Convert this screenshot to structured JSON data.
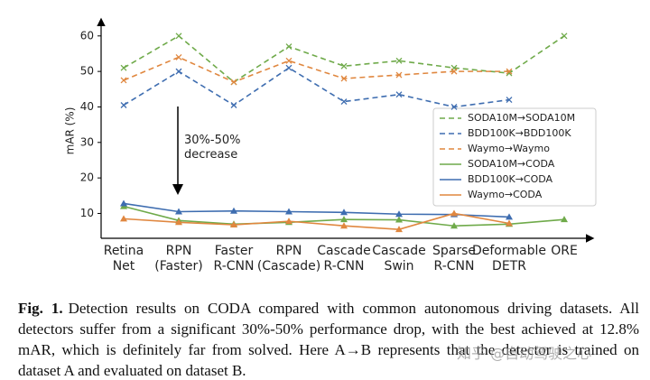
{
  "chart_data": {
    "type": "line",
    "ylabel": "mAR (%)",
    "categories": [
      "Retina\nNet",
      "RPN\n(Faster)",
      "Faster\nR-CNN",
      "RPN\n(Cascade)",
      "Cascade\nR-CNN",
      "Cascade\nSwin",
      "Sparse\nR-CNN",
      "Deformable\nDETR",
      "ORE"
    ],
    "ylim": [
      3,
      63
    ],
    "yticks": [
      10,
      20,
      30,
      40,
      50,
      60
    ],
    "annotation": "30%-50%\ndecrease",
    "legend_position": "right",
    "series": [
      {
        "name": "SODA10M→SODA10M",
        "color": "#6faa4a",
        "dashed": true,
        "marker": "x",
        "values": [
          51,
          60,
          47,
          57,
          51.5,
          53,
          51,
          49.5,
          60
        ]
      },
      {
        "name": "BDD100K→BDD100K",
        "color": "#3e6db0",
        "dashed": true,
        "marker": "x",
        "values": [
          40.5,
          50,
          40.5,
          51,
          41.5,
          43.5,
          40,
          42,
          null
        ]
      },
      {
        "name": "Waymo→Waymo",
        "color": "#e0873f",
        "dashed": true,
        "marker": "x",
        "values": [
          47.5,
          54,
          47,
          53,
          48,
          49,
          50,
          50,
          null
        ]
      },
      {
        "name": "SODA10M→CODA",
        "color": "#6faa4a",
        "dashed": false,
        "marker": "^",
        "values": [
          12,
          8,
          7,
          7.5,
          8.3,
          8.2,
          6.5,
          7,
          8.3
        ]
      },
      {
        "name": "BDD100K→CODA",
        "color": "#3e6db0",
        "dashed": false,
        "marker": "^",
        "values": [
          12.8,
          10.5,
          10.7,
          10.5,
          10.3,
          9.8,
          9.7,
          9,
          null
        ]
      },
      {
        "name": "Waymo→CODA",
        "color": "#e0873f",
        "dashed": false,
        "marker": "^",
        "values": [
          8.5,
          7.5,
          6.8,
          7.8,
          6.5,
          5.5,
          10,
          7.2,
          null
        ]
      }
    ]
  },
  "caption": {
    "label": "Fig. 1.",
    "text": "Detection results on CODA compared with common autonomous driving datasets. All detectors suffer from a significant 30%-50% performance drop, with the best achieved at 12.8% mAR, which is definitely far from solved. Here A→B represents that the detector is trained on dataset A and evaluated on dataset B."
  },
  "watermark": "知乎 @自动驾驶之心"
}
